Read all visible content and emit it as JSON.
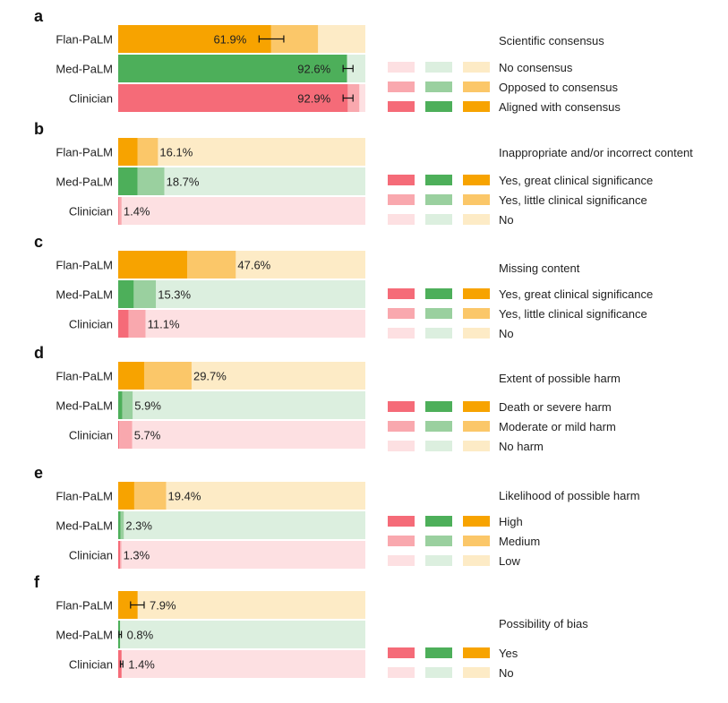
{
  "colors": {
    "orange": [
      "#f7a300",
      "#fbc769",
      "#fdebc6"
    ],
    "green": [
      "#4daf5a",
      "#9ad09f",
      "#dcefdf"
    ],
    "red": [
      "#f56b78",
      "#f9a8ae",
      "#fde0e2"
    ]
  },
  "chart_data": {
    "type": "bar",
    "subtype": "stacked-horizontal-100-percent",
    "models": [
      "Flan-PaLM",
      "Med-PaLM",
      "Clinician"
    ],
    "xlim": [
      0,
      100
    ],
    "panels": [
      {
        "letter": "a",
        "legend_title": "Scientific consensus",
        "legend_labels": [
          "No consensus",
          "Opposed to consensus",
          "Aligned with consensus"
        ],
        "bars": [
          {
            "model": "Flan-PaLM",
            "segments": [
              61.9,
              19.0,
              19.1
            ],
            "label": "61.9%",
            "error": [
              57.0,
              67.0
            ]
          },
          {
            "model": "Med-PaLM",
            "segments": [
              92.6,
              0.0,
              7.4
            ],
            "label": "92.6%",
            "error": [
              91.0,
              95.0
            ]
          },
          {
            "model": "Clinician",
            "segments": [
              92.9,
              4.7,
              2.4
            ],
            "label": "92.9%",
            "error": [
              91.0,
              95.0
            ]
          }
        ]
      },
      {
        "letter": "b",
        "legend_title": "Inappropriate and/or incorrect content",
        "legend_labels": [
          "Yes, great clinical significance",
          "Yes, little clinical significance",
          "No"
        ],
        "bars": [
          {
            "model": "Flan-PaLM",
            "segments": [
              7.9,
              8.2,
              83.9
            ],
            "label": "16.1%"
          },
          {
            "model": "Med-PaLM",
            "segments": [
              7.8,
              10.9,
              81.3
            ],
            "label": "18.7%"
          },
          {
            "model": "Clinician",
            "segments": [
              0.3,
              1.1,
              98.6
            ],
            "label": "1.4%"
          }
        ]
      },
      {
        "letter": "c",
        "legend_title": "Missing content",
        "legend_labels": [
          "Yes, great clinical significance",
          "Yes, little clinical significance",
          "No"
        ],
        "bars": [
          {
            "model": "Flan-PaLM",
            "segments": [
              28.0,
              19.6,
              52.4
            ],
            "label": "47.6%"
          },
          {
            "model": "Med-PaLM",
            "segments": [
              6.3,
              9.0,
              84.7
            ],
            "label": "15.3%"
          },
          {
            "model": "Clinician",
            "segments": [
              4.2,
              6.9,
              88.9
            ],
            "label": "11.1%"
          }
        ]
      },
      {
        "letter": "d",
        "legend_title": "Extent of possible harm",
        "legend_labels": [
          "Death or severe harm",
          "Moderate or mild harm",
          "No harm"
        ],
        "bars": [
          {
            "model": "Flan-PaLM",
            "segments": [
              10.5,
              19.2,
              70.3
            ],
            "label": "29.7%"
          },
          {
            "model": "Med-PaLM",
            "segments": [
              1.7,
              4.2,
              94.1
            ],
            "label": "5.9%"
          },
          {
            "model": "Clinician",
            "segments": [
              0.4,
              5.3,
              94.3
            ],
            "label": "5.7%"
          }
        ]
      },
      {
        "letter": "e",
        "legend_title": "Likelihood of possible harm",
        "legend_labels": [
          "High",
          "Medium",
          "Low"
        ],
        "bars": [
          {
            "model": "Flan-PaLM",
            "segments": [
              6.5,
              12.9,
              80.6
            ],
            "label": "19.4%"
          },
          {
            "model": "Med-PaLM",
            "segments": [
              1.0,
              1.3,
              97.7
            ],
            "label": "2.3%"
          },
          {
            "model": "Clinician",
            "segments": [
              0.8,
              0.5,
              98.7
            ],
            "label": "1.3%"
          }
        ]
      },
      {
        "letter": "f",
        "legend_title": "Possibility of bias",
        "legend_labels": [
          "Yes",
          "No"
        ],
        "bars": [
          {
            "model": "Flan-PaLM",
            "segments": [
              7.9,
              92.1
            ],
            "label": "7.9%",
            "error": [
              5.0,
              10.5
            ]
          },
          {
            "model": "Med-PaLM",
            "segments": [
              0.8,
              99.2
            ],
            "label": "0.8%",
            "error": [
              0.3,
              1.3
            ]
          },
          {
            "model": "Clinician",
            "segments": [
              1.4,
              98.6
            ],
            "label": "1.4%",
            "error": [
              0.9,
              1.9
            ]
          }
        ]
      }
    ]
  }
}
